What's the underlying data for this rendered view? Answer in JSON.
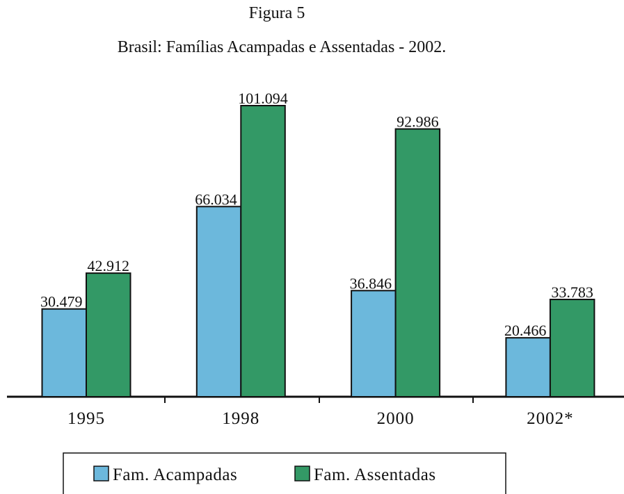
{
  "chart_data": {
    "type": "bar",
    "title": "Figura 5",
    "subtitle": "Brasil: Famílias Acampadas e Assentadas - 2002.",
    "categories": [
      "1995",
      "1998",
      "2000",
      "2002*"
    ],
    "series": [
      {
        "name": "Fam. Acampadas",
        "color": "#6cb8dc",
        "values": [
          30479,
          66034,
          36846,
          20466
        ],
        "value_labels": [
          "30.479",
          "66.034",
          "36.846",
          "20.466"
        ]
      },
      {
        "name": "Fam. Assentadas",
        "color": "#339966",
        "values": [
          42912,
          101094,
          92986,
          33783
        ],
        "value_labels": [
          "42.912",
          "101.094",
          "92.986",
          "33.783"
        ]
      }
    ]
  }
}
